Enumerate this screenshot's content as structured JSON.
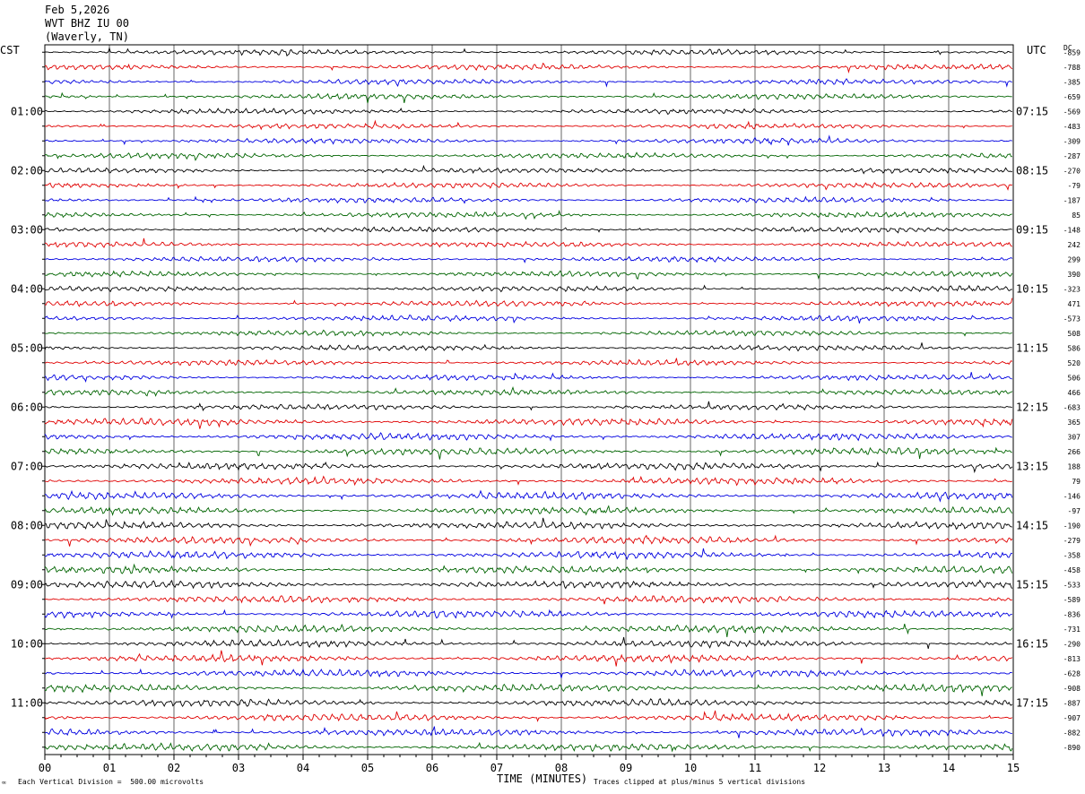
{
  "header": {
    "date": "Feb 5,2026",
    "station": "WVT BHZ IU 00",
    "location": "(Waverly, TN)"
  },
  "left_tz": "CST",
  "right_tz": "UTC",
  "dc_label": "DC",
  "footer": {
    "division_note": "Each Vertical Division =  500.00 microvolts",
    "clip_note": "Traces clipped at plus/minus 5 vertical divisions",
    "corner_mark": "ꟹ"
  },
  "chart_data": {
    "type": "line",
    "title": "",
    "xlabel": "TIME (MINUTES)",
    "ylabel": "",
    "x_ticks": [
      "00",
      "01",
      "02",
      "03",
      "04",
      "05",
      "06",
      "07",
      "08",
      "09",
      "10",
      "11",
      "12",
      "13",
      "14",
      "15"
    ],
    "xlim": [
      0,
      15
    ],
    "rows_per_hour": 4,
    "row_minutes": 15,
    "trace_colors": [
      "#000000",
      "#e00000",
      "#0000e0",
      "#006400"
    ],
    "left_hour_labels": [
      "01:00",
      "02:00",
      "03:00",
      "04:00",
      "05:00",
      "06:00",
      "07:00",
      "08:00",
      "09:00",
      "10:00",
      "11:00"
    ],
    "right_hour_labels": [
      "07:15",
      "08:15",
      "09:15",
      "10:15",
      "11:15",
      "12:15",
      "13:15",
      "14:15",
      "15:15",
      "16:15",
      "17:15"
    ],
    "dc_offsets": [
      "-859",
      "-788",
      "-385",
      "-659",
      "-569",
      "-483",
      "-309",
      "-287",
      "-270",
      "-79",
      "-187",
      "85",
      "-148",
      "242",
      "299",
      "390",
      "-323",
      "471",
      "-573",
      "508",
      "586",
      "520",
      "506",
      "466",
      "-683",
      "365",
      "307",
      "266",
      "188",
      "79",
      "-146",
      "-97",
      "-190",
      "-279",
      "-358",
      "-458",
      "-533",
      "-589",
      "-836",
      "-731",
      "-290",
      "-813",
      "-628",
      "-908",
      "-887",
      "-907",
      "-882",
      "-890"
    ],
    "grid": true
  }
}
